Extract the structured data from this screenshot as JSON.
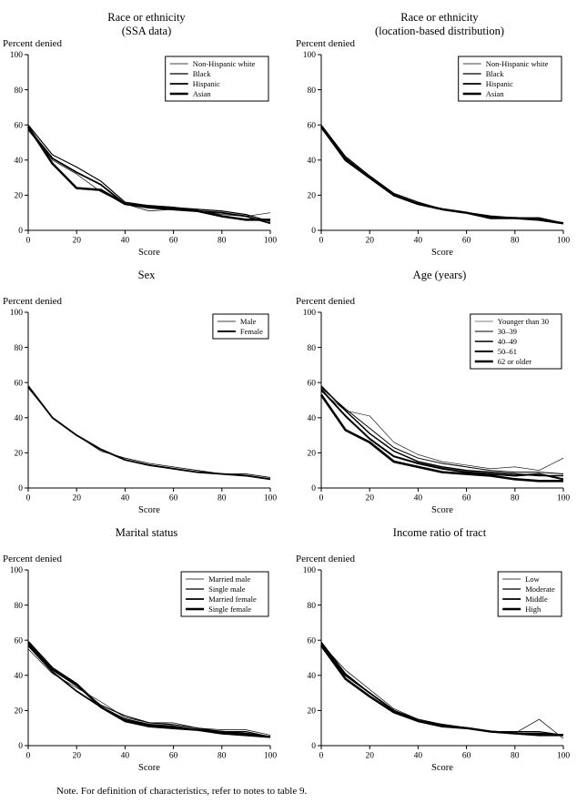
{
  "page": {
    "note": "Note. For definition of characteristics, refer to notes to table 9."
  },
  "chart_data": [
    {
      "type": "line",
      "title": "Race or ethnicity",
      "subtitle": "(SSA data)",
      "ylabel": "Percent denied",
      "xlabel": "Score",
      "xlim": [
        0,
        100
      ],
      "ylim": [
        0,
        100
      ],
      "xticks": [
        0,
        20,
        40,
        60,
        80,
        100
      ],
      "yticks": [
        0,
        20,
        40,
        60,
        80,
        100
      ],
      "x": [
        0,
        10,
        20,
        30,
        40,
        50,
        60,
        70,
        80,
        90,
        100
      ],
      "color": "#000000",
      "legend_position": "upper right",
      "series": [
        {
          "name": "Non-Hispanic white",
          "values": [
            57,
            40,
            32,
            22,
            15,
            11,
            12,
            11,
            9,
            8,
            10
          ]
        },
        {
          "name": "Black",
          "values": [
            60,
            43,
            36,
            28,
            16,
            14,
            13,
            12,
            11,
            9,
            5
          ]
        },
        {
          "name": "Hispanic",
          "values": [
            58,
            41,
            33,
            26,
            15,
            14,
            13,
            11,
            10,
            8,
            4
          ]
        },
        {
          "name": "Asian",
          "values": [
            59,
            38,
            24,
            23,
            15,
            13,
            12,
            11,
            8,
            6,
            6
          ]
        }
      ]
    },
    {
      "type": "line",
      "title": "Race or ethnicity",
      "subtitle": "(location-based distribution)",
      "ylabel": "Percent denied",
      "xlabel": "Score",
      "xlim": [
        0,
        100
      ],
      "ylim": [
        0,
        100
      ],
      "xticks": [
        0,
        20,
        40,
        60,
        80,
        100
      ],
      "yticks": [
        0,
        20,
        40,
        60,
        80,
        100
      ],
      "x": [
        0,
        10,
        20,
        30,
        40,
        50,
        60,
        70,
        80,
        90,
        100
      ],
      "color": "#000000",
      "legend_position": "upper right",
      "series": [
        {
          "name": "Non-Hispanic white",
          "values": [
            58,
            40,
            30,
            20,
            15,
            12,
            10,
            7,
            7,
            7,
            4
          ]
        },
        {
          "name": "Black",
          "values": [
            60,
            42,
            31,
            21,
            16,
            12,
            10,
            8,
            7,
            7,
            4
          ]
        },
        {
          "name": "Hispanic",
          "values": [
            59,
            41,
            30,
            20,
            15,
            12,
            10,
            8,
            7,
            7,
            4
          ]
        },
        {
          "name": "Asian",
          "values": [
            59,
            40,
            30,
            20,
            15,
            12,
            10,
            7,
            7,
            6,
            4
          ]
        }
      ]
    },
    {
      "type": "line",
      "title": "Sex",
      "ylabel": "Percent denied",
      "xlabel": "Score",
      "xlim": [
        0,
        100
      ],
      "ylim": [
        0,
        100
      ],
      "xticks": [
        0,
        20,
        40,
        60,
        80,
        100
      ],
      "yticks": [
        0,
        20,
        40,
        60,
        80,
        100
      ],
      "x": [
        0,
        10,
        20,
        30,
        40,
        50,
        60,
        70,
        80,
        90,
        100
      ],
      "color": "#000000",
      "legend_position": "upper right",
      "series": [
        {
          "name": "Male",
          "values": [
            57,
            40,
            30,
            21,
            17,
            14,
            12,
            10,
            8,
            8,
            6
          ]
        },
        {
          "name": "Female",
          "values": [
            58,
            40,
            30,
            22,
            16,
            13,
            11,
            9,
            8,
            7,
            5
          ]
        }
      ]
    },
    {
      "type": "line",
      "title": "Age (years)",
      "ylabel": "Percent denied",
      "xlabel": "Score",
      "xlim": [
        0,
        100
      ],
      "ylim": [
        0,
        100
      ],
      "xticks": [
        0,
        20,
        40,
        60,
        80,
        100
      ],
      "yticks": [
        0,
        20,
        40,
        60,
        80,
        100
      ],
      "x": [
        0,
        10,
        20,
        30,
        40,
        50,
        60,
        70,
        80,
        90,
        100
      ],
      "color": "#000000",
      "legend_position": "upper right",
      "series": [
        {
          "name": "Younger than 30",
          "values": [
            55,
            44,
            41,
            26,
            19,
            15,
            13,
            11,
            12,
            10,
            17
          ]
        },
        {
          "name": "30–39",
          "values": [
            57,
            45,
            34,
            23,
            17,
            14,
            12,
            10,
            9,
            9,
            8
          ]
        },
        {
          "name": "40–49",
          "values": [
            58,
            44,
            31,
            21,
            15,
            12,
            10,
            9,
            8,
            7,
            7
          ]
        },
        {
          "name": "50–61",
          "values": [
            56,
            41,
            28,
            18,
            14,
            11,
            9,
            8,
            7,
            8,
            5
          ]
        },
        {
          "name": "62 or older",
          "values": [
            53,
            33,
            26,
            15,
            12,
            9,
            8,
            7,
            5,
            4,
            4
          ]
        }
      ]
    },
    {
      "type": "line",
      "title": "Marital status",
      "ylabel": "Percent denied",
      "xlabel": "Score",
      "xlim": [
        0,
        100
      ],
      "ylim": [
        0,
        100
      ],
      "xticks": [
        0,
        20,
        40,
        60,
        80,
        100
      ],
      "yticks": [
        0,
        20,
        40,
        60,
        80,
        100
      ],
      "x": [
        0,
        10,
        20,
        30,
        40,
        50,
        60,
        70,
        80,
        90,
        100
      ],
      "color": "#000000",
      "legend_position": "upper right",
      "series": [
        {
          "name": "Married male",
          "values": [
            55,
            41,
            33,
            25,
            16,
            13,
            13,
            10,
            9,
            9,
            6
          ]
        },
        {
          "name": "Single male",
          "values": [
            58,
            43,
            34,
            23,
            17,
            13,
            12,
            10,
            8,
            8,
            5
          ]
        },
        {
          "name": "Married female",
          "values": [
            57,
            42,
            31,
            22,
            15,
            12,
            11,
            9,
            8,
            7,
            5
          ]
        },
        {
          "name": "Single female",
          "values": [
            59,
            44,
            35,
            22,
            14,
            11,
            10,
            9,
            7,
            6,
            5
          ]
        }
      ]
    },
    {
      "type": "line",
      "title": "Income ratio of tract",
      "ylabel": "Percent denied",
      "xlabel": "Score",
      "xlim": [
        0,
        100
      ],
      "ylim": [
        0,
        100
      ],
      "xticks": [
        0,
        20,
        40,
        60,
        80,
        100
      ],
      "yticks": [
        0,
        20,
        40,
        60,
        80,
        100
      ],
      "x": [
        0,
        10,
        20,
        30,
        40,
        50,
        60,
        70,
        80,
        90,
        100
      ],
      "color": "#000000",
      "legend_position": "upper right",
      "series": [
        {
          "name": "Low",
          "values": [
            58,
            43,
            32,
            21,
            15,
            12,
            10,
            8,
            7,
            15,
            4
          ]
        },
        {
          "name": "Moderate",
          "values": [
            59,
            41,
            30,
            20,
            15,
            12,
            10,
            8,
            8,
            8,
            6
          ]
        },
        {
          "name": "Middle",
          "values": [
            58,
            40,
            30,
            20,
            14,
            12,
            10,
            8,
            7,
            7,
            6
          ]
        },
        {
          "name": "High",
          "values": [
            57,
            38,
            28,
            19,
            14,
            11,
            10,
            8,
            7,
            6,
            6
          ]
        }
      ]
    }
  ]
}
